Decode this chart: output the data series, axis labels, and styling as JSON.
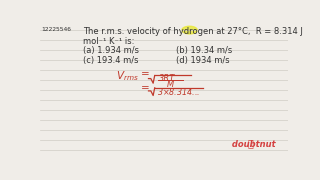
{
  "bg_color": "#f0ede8",
  "question_id": "12225546",
  "title_line1": "The r.m.s. velocity of hydrogen at 27°C,  R = 8.314 J",
  "title_line2": "mol⁻¹ K⁻¹ is:",
  "opt_a": "(a) 1.934 m/s",
  "opt_b": "(b) 19.34 m/s",
  "opt_c": "(c) 193.4 m/s",
  "opt_d": "(d) 1934 m/s",
  "text_color": "#333333",
  "red_color": "#c0392b",
  "highlight_color": "#e8e830",
  "doubtnut_red": "#d44040",
  "line_color": "#d0ccc5"
}
